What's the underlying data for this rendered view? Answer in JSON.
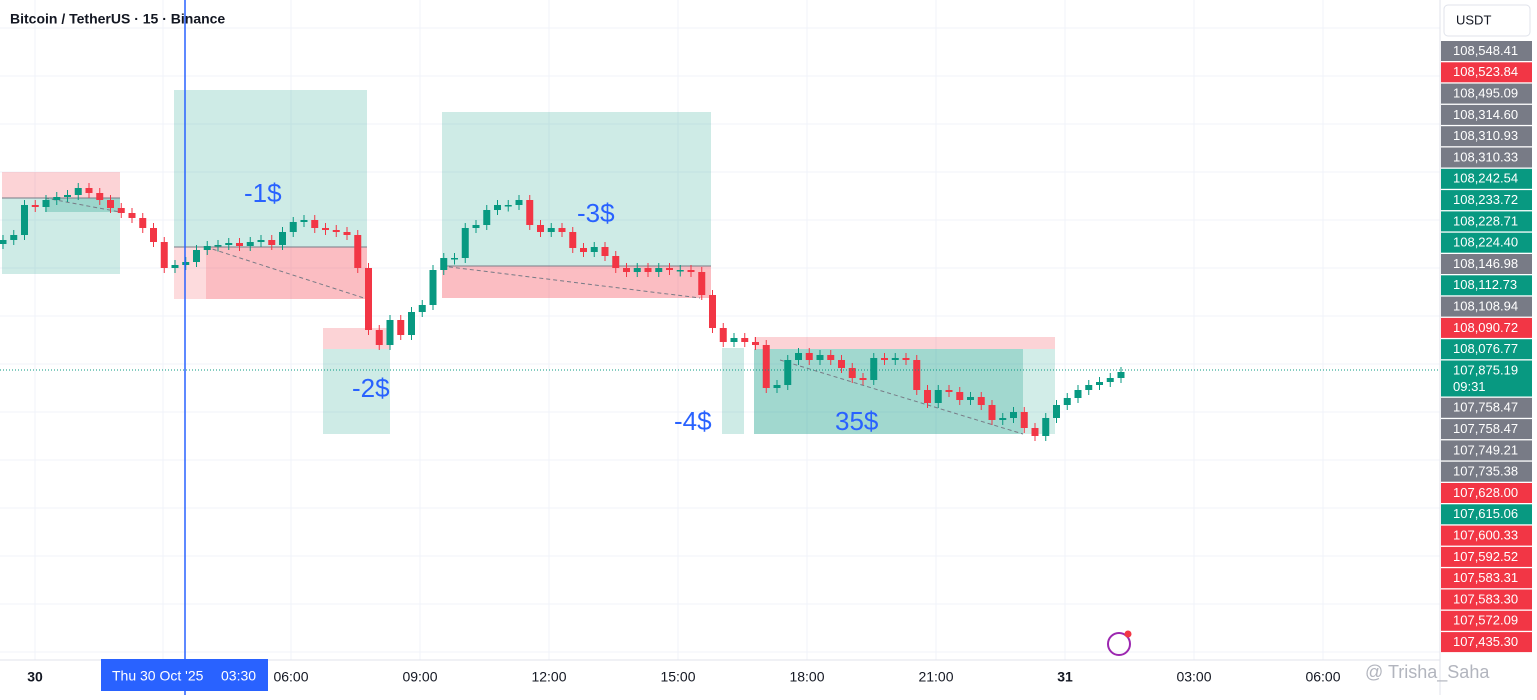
{
  "header": {
    "title": "Bitcoin / TetherUS · 15 · Binance",
    "currency": "USDT"
  },
  "price_scale": [
    {
      "label": "108,548.41",
      "color": "#787b86"
    },
    {
      "label": "108,523.84",
      "color": "#f23645"
    },
    {
      "label": "108,495.09",
      "color": "#787b86"
    },
    {
      "label": "108,314.60",
      "color": "#787b86"
    },
    {
      "label": "108,310.93",
      "color": "#787b86"
    },
    {
      "label": "108,310.33",
      "color": "#787b86"
    },
    {
      "label": "108,242.54",
      "color": "#089981"
    },
    {
      "label": "108,233.72",
      "color": "#089981"
    },
    {
      "label": "108,228.71",
      "color": "#089981"
    },
    {
      "label": "108,224.40",
      "color": "#089981"
    },
    {
      "label": "108,146.98",
      "color": "#787b86"
    },
    {
      "label": "108,112.73",
      "color": "#089981"
    },
    {
      "label": "108,108.94",
      "color": "#787b86"
    },
    {
      "label": "108,090.72",
      "color": "#f23645"
    },
    {
      "label": "108,076.77",
      "color": "#089981"
    },
    {
      "label": "107,875.19",
      "color": "#089981",
      "countdown": "09:31"
    },
    {
      "label": "107,758.47",
      "color": "#787b86"
    },
    {
      "label": "107,758.47",
      "color": "#787b86"
    },
    {
      "label": "107,749.21",
      "color": "#787b86"
    },
    {
      "label": "107,735.38",
      "color": "#787b86"
    },
    {
      "label": "107,628.00",
      "color": "#f23645"
    },
    {
      "label": "107,615.06",
      "color": "#089981"
    },
    {
      "label": "107,600.33",
      "color": "#f23645"
    },
    {
      "label": "107,592.52",
      "color": "#f23645"
    },
    {
      "label": "107,583.31",
      "color": "#f23645"
    },
    {
      "label": "107,583.30",
      "color": "#f23645"
    },
    {
      "label": "107,572.09",
      "color": "#f23645"
    },
    {
      "label": "107,435.30",
      "color": "#f23645"
    }
  ],
  "time_axis": [
    "30",
    "06:00",
    "09:00",
    "12:00",
    "15:00",
    "18:00",
    "21:00",
    "31",
    "03:00",
    "06:00"
  ],
  "crosshair": {
    "date": "Thu 30 Oct '25",
    "time": "03:30"
  },
  "annotations": [
    "-1$",
    "-2$",
    "-3$",
    "-4$",
    "35$"
  ],
  "watermark": "@ Trisha_Saha"
}
